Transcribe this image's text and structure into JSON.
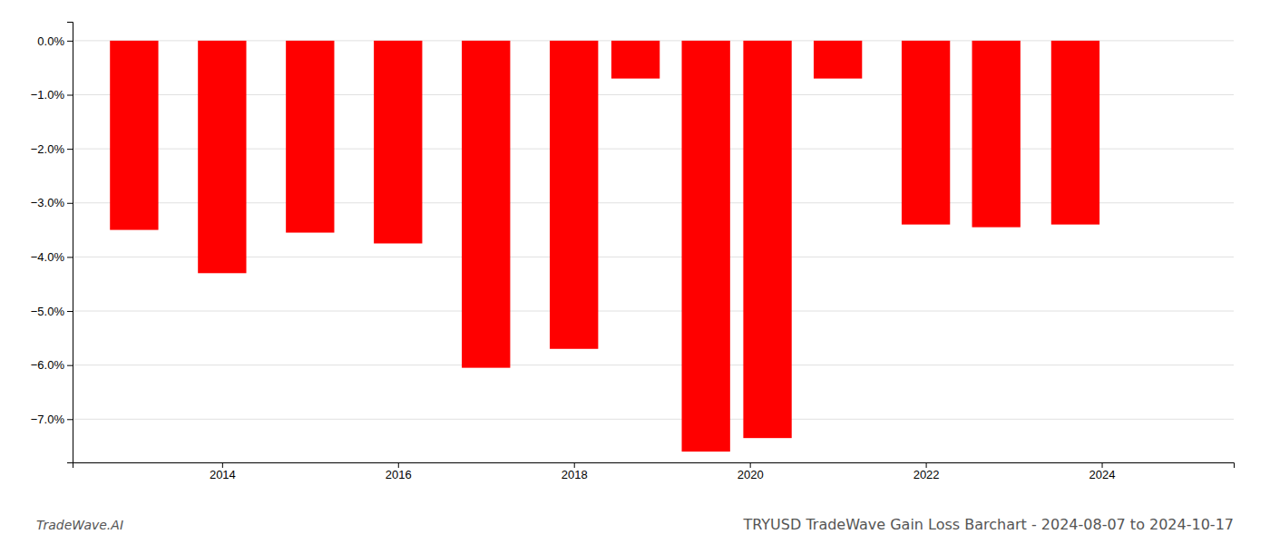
{
  "chart_data": {
    "type": "bar",
    "title": "TRYUSD TradeWave Gain Loss Barchart - 2024-08-07 to 2024-10-17",
    "annotations": [
      "TradeWave.AI"
    ],
    "x": [
      2013,
      2014,
      2015,
      2016,
      2017,
      2018,
      2018.7,
      2019.5,
      2020.2,
      2021,
      2022,
      2022.8,
      2023.7
    ],
    "values": [
      -3.5,
      -4.3,
      -3.55,
      -3.75,
      -6.05,
      -5.7,
      -0.7,
      -7.6,
      -7.35,
      -0.7,
      -3.4,
      -3.45,
      -3.4
    ],
    "color": "#ff0000",
    "xlim": [
      2012.3,
      2025.5
    ],
    "xticks": [
      2014,
      2016,
      2018,
      2020,
      2022,
      2024
    ],
    "ylim": [
      -7.8,
      0.35
    ],
    "yticks": [
      {
        "value": -7,
        "label": "−7.0%"
      },
      {
        "value": -6,
        "label": "−6.0%"
      },
      {
        "value": -5,
        "label": "−5.0%"
      },
      {
        "value": -4,
        "label": "−4.0%"
      },
      {
        "value": -3,
        "label": "−3.0%"
      },
      {
        "value": -2,
        "label": "−2.0%"
      },
      {
        "value": -1,
        "label": "−1.0%"
      },
      {
        "value": 0,
        "label": "0.0%"
      }
    ],
    "grid": true
  }
}
